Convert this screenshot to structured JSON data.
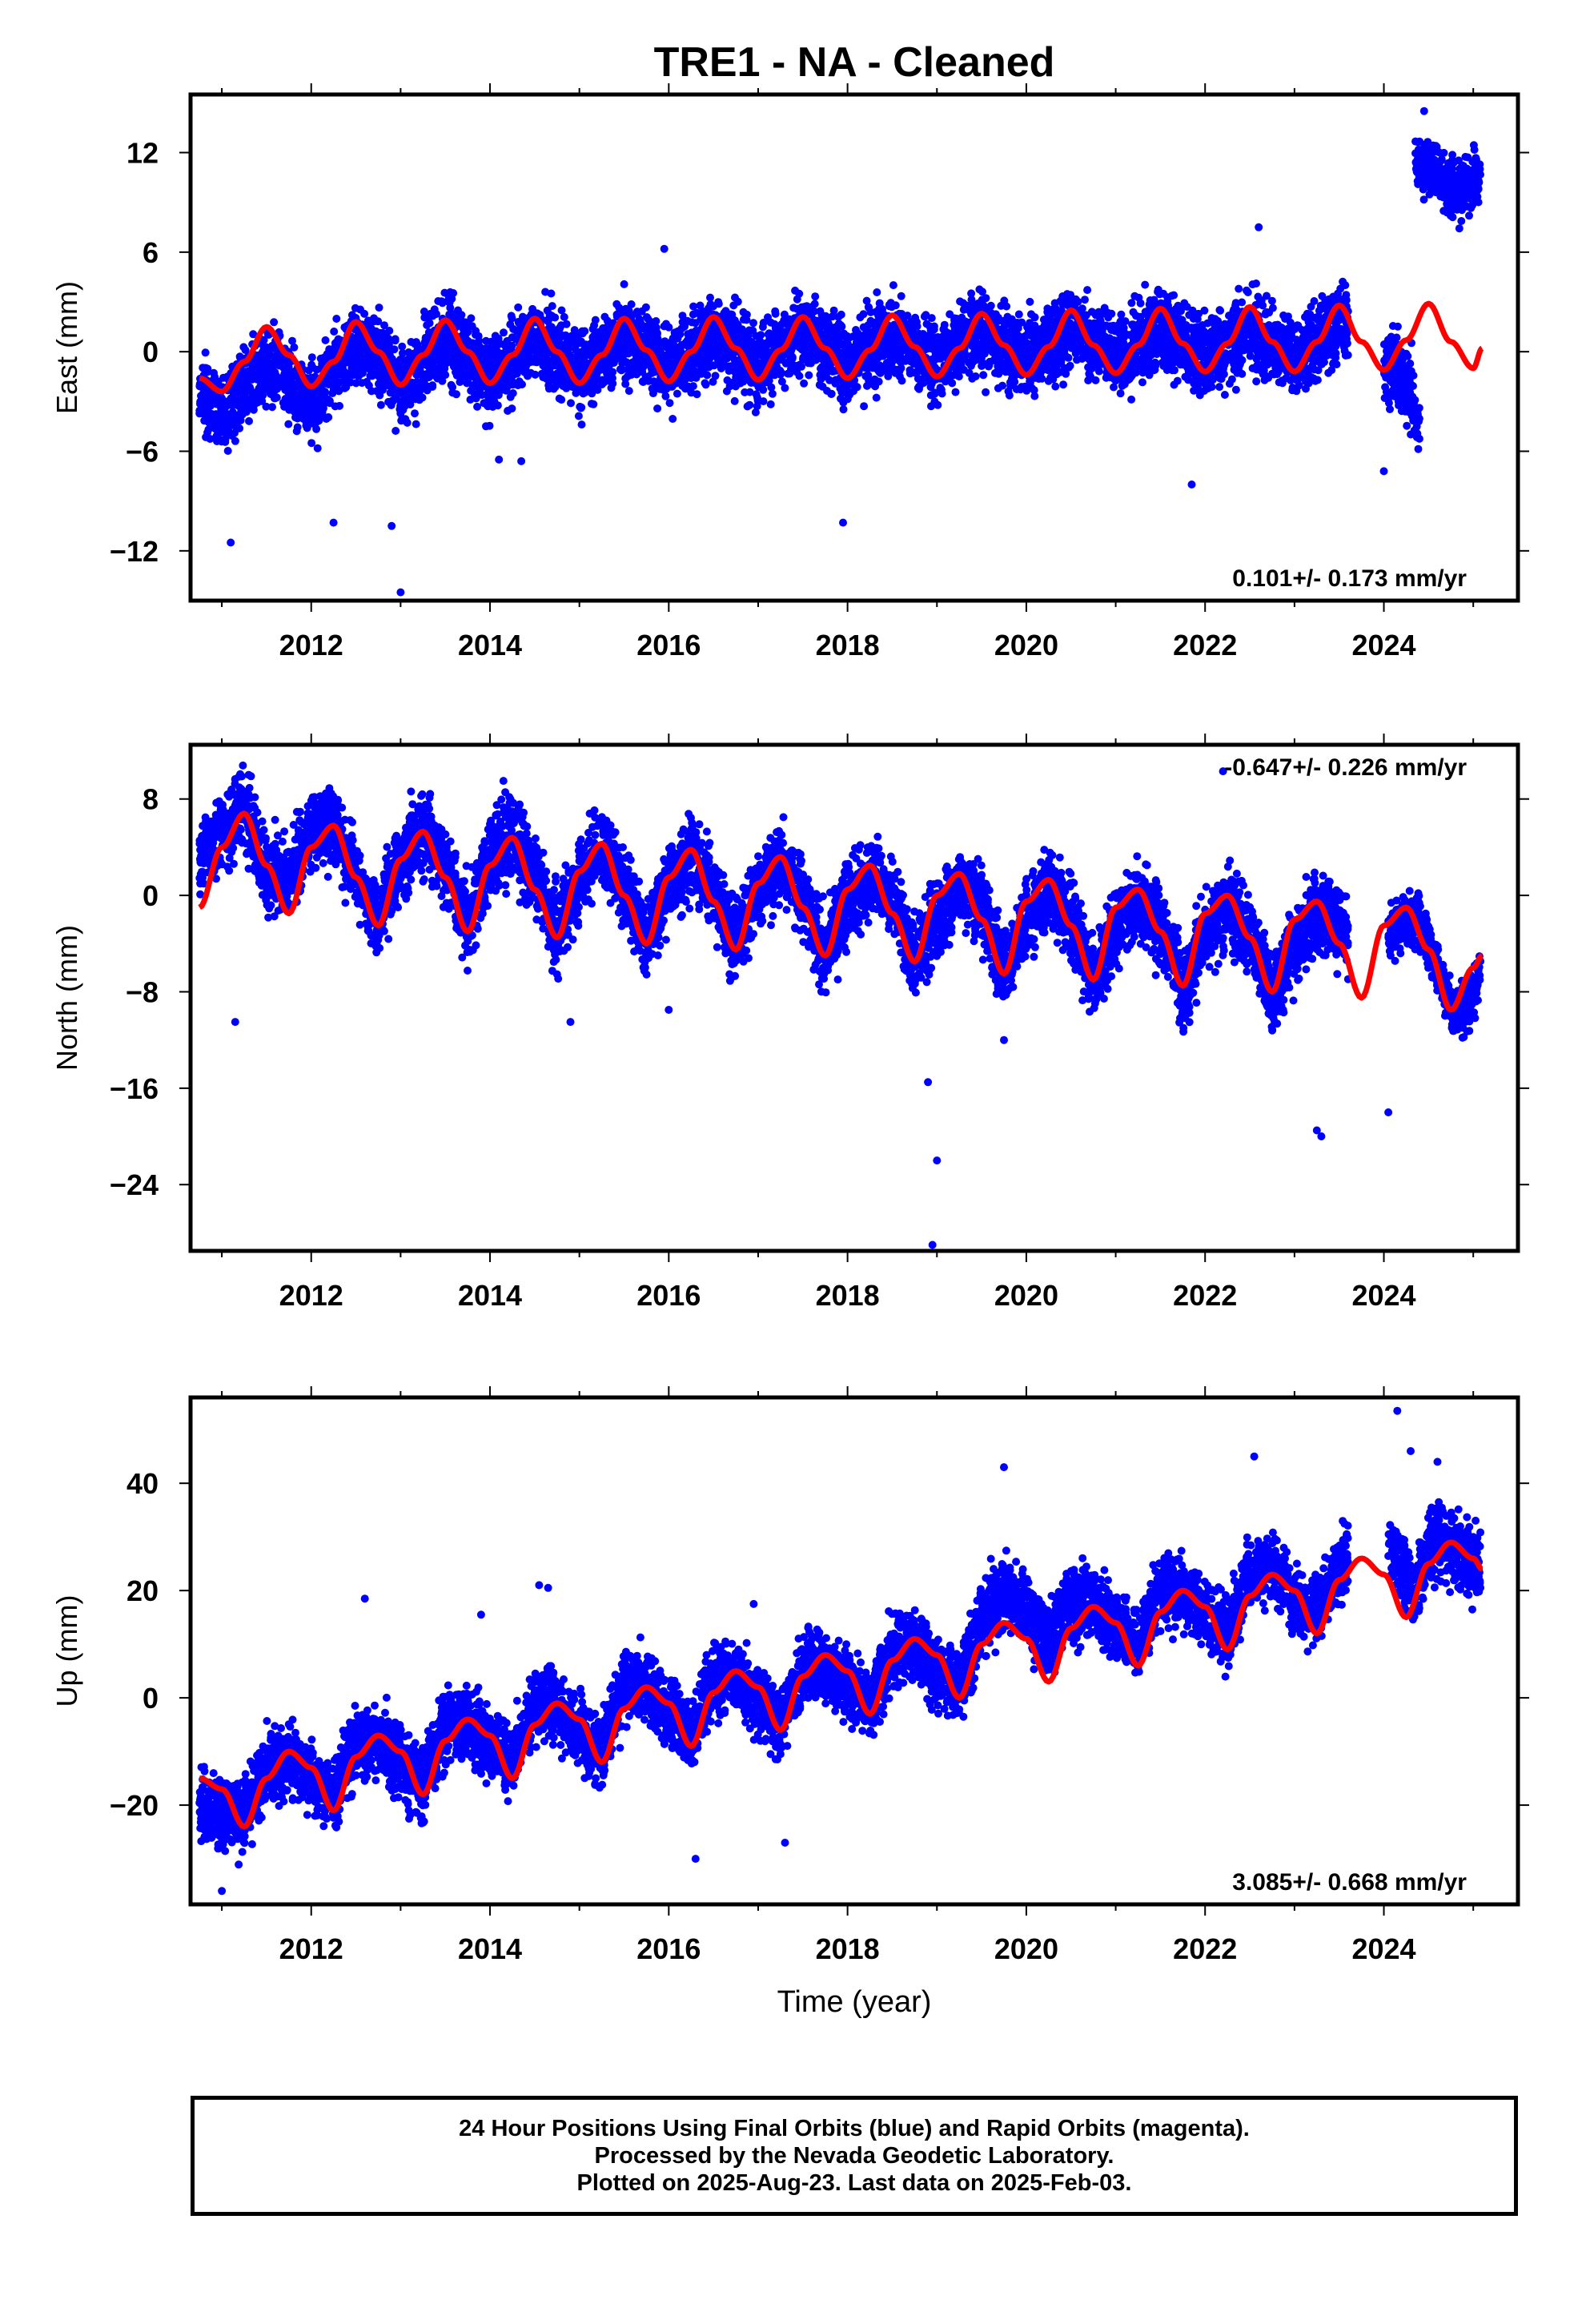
{
  "title": "TRE1  - NA - Cleaned",
  "xlabel": "Time (year)",
  "footer": {
    "line1": "24 Hour Positions Using Final Orbits (blue) and Rapid Orbits (magenta).",
    "line2": "Processed by the Nevada Geodetic Laboratory.",
    "line3": "Plotted on 2025-Aug-23. Last data on 2025-Feb-03."
  },
  "colors": {
    "observations": "#0000ff",
    "model": "#ff0000",
    "frame": "#000000"
  },
  "chart_data": [
    {
      "type": "scatter",
      "component": "east",
      "ylabel": "East (mm)",
      "rate_label": "0.101+/- 0.173 mm/yr",
      "rate_label_position": "bottom-right",
      "xlim": [
        2010.65,
        2025.5
      ],
      "ylim": [
        -15,
        15.5
      ],
      "xticks": [
        "2012",
        "2014",
        "2016",
        "2018",
        "2020",
        "2022",
        "2024"
      ],
      "yticks": [
        12,
        6,
        0,
        -6,
        -12
      ],
      "yticklabels": [
        "12",
        "6",
        "0",
        "−6",
        "−12"
      ],
      "series": [
        {
          "segments": [
            {
              "x": [
                2010.75,
                2011.0,
                2011.25,
                2011.5,
                2011.75,
                2012.0,
                2012.25,
                2012.5,
                2012.75,
                2013.0,
                2013.25,
                2013.5,
                2013.75,
                2014.0,
                2014.25,
                2014.5,
                2014.75,
                2015.0,
                2015.25,
                2015.5,
                2015.75,
                2016.0,
                2016.25,
                2016.5,
                2016.75,
                2017.0,
                2017.25,
                2017.5,
                2017.75,
                2018.0,
                2018.25,
                2018.5,
                2018.75,
                2019.0,
                2019.25,
                2019.5,
                2019.75,
                2020.0,
                2020.25,
                2020.5,
                2020.75,
                2021.0,
                2021.25,
                2021.5,
                2021.75,
                2022.0,
                2022.25,
                2022.5,
                2022.75,
                2023.0,
                2023.25,
                2023.5,
                2023.6
              ],
              "y": [
                -2.2,
                -3.8,
                -2.2,
                -0.8,
                -1.6,
                -3.2,
                -1.2,
                0.5,
                -0.3,
                -2.2,
                -0.6,
                0.8,
                -0.2,
                -1.5,
                -0.4,
                0.9,
                0.0,
                -1.4,
                -0.2,
                1.0,
                0.1,
                -1.0,
                0.0,
                1.0,
                0.2,
                -1.0,
                0.2,
                1.0,
                0.2,
                -0.8,
                0.2,
                1.0,
                0.3,
                -0.6,
                0.4,
                1.3,
                0.4,
                -0.4,
                0.5,
                1.5,
                0.5,
                -0.3,
                0.5,
                1.4,
                0.5,
                -0.3,
                0.5,
                1.4,
                0.5,
                -0.3,
                0.6,
                1.6,
                1.7
              ],
              "spread": 1.6
            },
            {
              "x": [
                2024.0,
                2024.1,
                2024.2,
                2024.3,
                2024.4
              ],
              "y": [
                -1.0,
                -0.5,
                -1.5,
                -2.5,
                -4.0
              ],
              "spread": 1.5
            },
            {
              "x": [
                2024.35,
                2024.5,
                2024.65,
                2024.8,
                2025.0,
                2025.08
              ],
              "y": [
                11.5,
                11.0,
                10.5,
                9.5,
                10.0,
                10.5
              ],
              "spread": 1.2
            }
          ],
          "name": ""
        }
      ],
      "outliers": {
        "x": [
          2011.1,
          2012.25,
          2012.9,
          2013.0,
          2014.1,
          2014.35,
          2015.95,
          2017.95,
          2021.85,
          2022.6,
          2024.0,
          2024.45
        ],
        "y": [
          -11.5,
          -10.3,
          -10.5,
          -14.5,
          -6.5,
          -6.6,
          6.2,
          -10.3,
          -8.0,
          7.5,
          -7.2,
          14.5
        ]
      },
      "model": {
        "x": [
          2010.75,
          2011.0,
          2011.25,
          2011.5,
          2011.75,
          2012.0,
          2012.25,
          2012.5,
          2012.75,
          2013.0,
          2013.25,
          2013.5,
          2013.75,
          2014.0,
          2014.25,
          2014.5,
          2014.75,
          2015.0,
          2015.25,
          2015.5,
          2015.75,
          2016.0,
          2016.25,
          2016.5,
          2016.75,
          2017.0,
          2017.25,
          2017.5,
          2017.75,
          2018.0,
          2018.25,
          2018.5,
          2018.75,
          2019.0,
          2019.25,
          2019.5,
          2019.75,
          2020.0,
          2020.25,
          2020.5,
          2020.75,
          2021.0,
          2021.25,
          2021.5,
          2021.75,
          2022.0,
          2022.25,
          2022.5,
          2022.75,
          2023.0,
          2023.25,
          2023.5,
          2023.75,
          2024.0,
          2024.25,
          2024.5,
          2024.75,
          2025.0,
          2025.1
        ],
        "y": [
          -1.6,
          -2.4,
          -0.6,
          1.5,
          -0.2,
          -2.1,
          -0.6,
          1.8,
          0.0,
          -2.0,
          -0.2,
          1.9,
          0.0,
          -1.9,
          -0.2,
          2.0,
          0.0,
          -1.9,
          -0.2,
          2.0,
          0.1,
          -1.8,
          0.0,
          2.1,
          0.2,
          -1.7,
          0.1,
          2.1,
          0.2,
          -1.6,
          0.1,
          2.2,
          0.3,
          -1.5,
          0.2,
          2.3,
          0.4,
          -1.4,
          0.3,
          2.5,
          0.4,
          -1.3,
          0.4,
          2.6,
          0.5,
          -1.2,
          0.5,
          2.7,
          0.6,
          -1.2,
          0.6,
          2.8,
          0.6,
          -1.1,
          0.7,
          2.9,
          0.6,
          -1.0,
          0.2
        ]
      }
    },
    {
      "type": "scatter",
      "component": "north",
      "ylabel": "North (mm)",
      "rate_label": "-0.647+/- 0.226 mm/yr",
      "rate_label_position": "top-right",
      "xlim": [
        2010.65,
        2025.5
      ],
      "ylim": [
        -29.5,
        12.5
      ],
      "xticks": [
        "2012",
        "2014",
        "2016",
        "2018",
        "2020",
        "2022",
        "2024"
      ],
      "yticks": [
        8,
        0,
        -8,
        -16,
        -24
      ],
      "yticklabels": [
        "8",
        "0",
        "−8",
        "−16",
        "−24"
      ],
      "series": [
        {
          "segments": [
            {
              "x": [
                2010.75,
                2011.0,
                2011.25,
                2011.5,
                2011.75,
                2012.0,
                2012.25,
                2012.5,
                2012.75,
                2013.0,
                2013.25,
                2013.5,
                2013.75,
                2014.0,
                2014.25,
                2014.5,
                2014.75,
                2015.0,
                2015.25,
                2015.5,
                2015.75,
                2016.0,
                2016.25,
                2016.5,
                2016.75,
                2017.0,
                2017.25,
                2017.5,
                2017.75,
                2018.0,
                2018.25,
                2018.5,
                2018.75,
                2019.0,
                2019.25,
                2019.5,
                2019.75,
                2020.0,
                2020.25,
                2020.5,
                2020.75,
                2021.0,
                2021.25,
                2021.5,
                2021.75,
                2022.0,
                2022.25,
                2022.5,
                2022.75,
                2023.0,
                2023.25,
                2023.5,
                2023.6
              ],
              "y": [
                3.0,
                5.5,
                7.0,
                2.0,
                1.5,
                5.5,
                6.0,
                1.5,
                -2.0,
                3.0,
                5.5,
                2.5,
                -2.5,
                3.0,
                5.0,
                2.0,
                -3.0,
                1.5,
                4.5,
                1.0,
                -4.0,
                1.0,
                3.5,
                0.5,
                -4.0,
                0.5,
                3.0,
                0.0,
                -5.0,
                -0.5,
                1.5,
                0.0,
                -5.5,
                -2.0,
                0.5,
                -0.5,
                -6.5,
                -2.0,
                0.5,
                -1.5,
                -7.0,
                -2.5,
                -0.5,
                -2.5,
                -8.0,
                -3.0,
                -1.0,
                -3.0,
                -8.5,
                -4.0,
                -1.5,
                -2.0,
                -3.0
              ],
              "spread": 2.2
            },
            {
              "x": [
                2024.05,
                2024.2,
                2024.35,
                2024.5,
                2024.65,
                2024.8,
                2025.0,
                2025.08
              ],
              "y": [
                -3.5,
                -2.0,
                -1.5,
                -4.0,
                -7.5,
                -10.0,
                -8.0,
                -6.0
              ],
              "spread": 1.5
            }
          ],
          "name": ""
        }
      ],
      "outliers": {
        "x": [
          2011.15,
          2011.3,
          2014.15,
          2014.9,
          2016.0,
          2018.9,
          2018.95,
          2019.0,
          2019.75,
          2023.25,
          2023.3,
          2024.05,
          2022.2
        ],
        "y": [
          -10.5,
          10.0,
          9.5,
          -10.5,
          -9.5,
          -15.5,
          -29.0,
          -22.0,
          -12.0,
          -19.5,
          -20.0,
          -18.0,
          10.3
        ]
      },
      "model": {
        "x": [
          2010.75,
          2011.0,
          2011.25,
          2011.5,
          2011.75,
          2012.0,
          2012.25,
          2012.5,
          2012.75,
          2013.0,
          2013.25,
          2013.5,
          2013.75,
          2014.0,
          2014.25,
          2014.5,
          2014.75,
          2015.0,
          2015.25,
          2015.5,
          2015.75,
          2016.0,
          2016.25,
          2016.5,
          2016.75,
          2017.0,
          2017.25,
          2017.5,
          2017.75,
          2018.0,
          2018.25,
          2018.5,
          2018.75,
          2019.0,
          2019.25,
          2019.5,
          2019.75,
          2020.0,
          2020.25,
          2020.5,
          2020.75,
          2021.0,
          2021.25,
          2021.5,
          2021.75,
          2022.0,
          2022.25,
          2022.5,
          2022.75,
          2023.0,
          2023.25,
          2023.5,
          2023.75,
          2024.0,
          2024.25,
          2024.5,
          2024.75,
          2025.0,
          2025.1
        ],
        "y": [
          -1.0,
          4.0,
          6.8,
          2.5,
          -1.5,
          4.0,
          5.8,
          1.5,
          -2.5,
          3.0,
          5.3,
          1.5,
          -3.0,
          2.5,
          4.8,
          0.5,
          -3.5,
          2.0,
          4.3,
          0.0,
          -4.0,
          1.5,
          3.8,
          -0.5,
          -4.5,
          1.0,
          3.2,
          -1.0,
          -5.0,
          0.5,
          2.5,
          -1.5,
          -5.5,
          0.0,
          1.8,
          -2.0,
          -6.5,
          -0.5,
          1.3,
          -2.5,
          -7.0,
          -1.0,
          0.5,
          -3.0,
          -7.5,
          -1.5,
          0.0,
          -3.5,
          -8.0,
          -2.0,
          -0.5,
          -4.0,
          -8.5,
          -2.5,
          -1.0,
          -4.5,
          -9.5,
          -6.0,
          -5.0
        ]
      }
    },
    {
      "type": "scatter",
      "component": "up",
      "ylabel": "Up (mm)",
      "rate_label": "3.085+/- 0.668 mm/yr",
      "rate_label_position": "bottom-right",
      "xlim": [
        2010.65,
        2025.5
      ],
      "ylim": [
        -38.5,
        56
      ],
      "xticks": [
        "2012",
        "2014",
        "2016",
        "2018",
        "2020",
        "2022",
        "2024"
      ],
      "xlabel": "Time (year)",
      "yticks": [
        40,
        20,
        0,
        -20
      ],
      "yticklabels": [
        "40",
        "20",
        "0",
        "−20"
      ],
      "series": [
        {
          "segments": [
            {
              "x": [
                2010.75,
                2011.0,
                2011.25,
                2011.5,
                2011.75,
                2012.0,
                2012.25,
                2012.5,
                2012.75,
                2013.0,
                2013.25,
                2013.5,
                2013.75,
                2014.0,
                2014.25,
                2014.5,
                2014.75,
                2015.0,
                2015.25,
                2015.5,
                2015.75,
                2016.0,
                2016.25,
                2016.5,
                2016.75,
                2017.0,
                2017.25,
                2017.5,
                2017.75,
                2018.0,
                2018.25,
                2018.5,
                2018.75,
                2019.0,
                2019.25,
                2019.5,
                2019.75,
                2020.0,
                2020.25,
                2020.5,
                2020.75,
                2021.0,
                2021.25,
                2021.5,
                2021.75,
                2022.0,
                2022.25,
                2022.5,
                2022.75,
                2023.0,
                2023.25,
                2023.5,
                2023.6
              ],
              "y": [
                -20.0,
                -22.0,
                -22.0,
                -13.0,
                -12.0,
                -15.0,
                -18.0,
                -8.0,
                -8.0,
                -12.0,
                -16.0,
                -5.0,
                -5.0,
                -9.0,
                -12.0,
                -1.0,
                -1.0,
                -6.0,
                -10.0,
                2.0,
                2.0,
                -3.0,
                -7.0,
                4.0,
                4.0,
                -1.0,
                -5.0,
                6.0,
                6.0,
                2.0,
                -2.0,
                9.0,
                10.0,
                5.0,
                2.0,
                15.0,
                20.0,
                16.0,
                10.0,
                18.0,
                18.0,
                13.0,
                10.0,
                20.0,
                20.0,
                15.0,
                12.0,
                23.0,
                25.0,
                18.0,
                16.0,
                25.0,
                26.0
              ],
              "spread": 4.5
            },
            {
              "x": [
                2024.05,
                2024.2,
                2024.35,
                2024.5,
                2024.65,
                2024.8,
                2025.0,
                2025.08
              ],
              "y": [
                30.0,
                24.0,
                20.0,
                28.0,
                30.0,
                27.0,
                25.0,
                25.0
              ],
              "spread": 4.5
            }
          ],
          "name": ""
        }
      ],
      "outliers": {
        "x": [
          2011.0,
          2012.6,
          2013.9,
          2014.55,
          2014.65,
          2016.3,
          2016.95,
          2017.3,
          2019.75,
          2022.55,
          2024.15,
          2024.3,
          2024.6
        ],
        "y": [
          -36.0,
          18.5,
          15.5,
          21.0,
          20.5,
          -30.0,
          17.5,
          -27.0,
          43.0,
          45.0,
          53.5,
          46.0,
          44.0
        ]
      },
      "model": {
        "x": [
          2010.75,
          2011.0,
          2011.25,
          2011.5,
          2011.75,
          2012.0,
          2012.25,
          2012.5,
          2012.75,
          2013.0,
          2013.25,
          2013.5,
          2013.75,
          2014.0,
          2014.25,
          2014.5,
          2014.75,
          2015.0,
          2015.25,
          2015.5,
          2015.75,
          2016.0,
          2016.25,
          2016.5,
          2016.75,
          2017.0,
          2017.25,
          2017.5,
          2017.75,
          2018.0,
          2018.25,
          2018.5,
          2018.75,
          2019.0,
          2019.25,
          2019.5,
          2019.75,
          2020.0,
          2020.25,
          2020.5,
          2020.75,
          2021.0,
          2021.25,
          2021.5,
          2021.75,
          2022.0,
          2022.25,
          2022.5,
          2022.75,
          2023.0,
          2023.25,
          2023.5,
          2023.75,
          2024.0,
          2024.25,
          2024.5,
          2024.75,
          2025.0,
          2025.1
        ],
        "y": [
          -15.0,
          -17.0,
          -24.0,
          -15.0,
          -10.0,
          -13.0,
          -21.0,
          -11.0,
          -7.0,
          -10.0,
          -18.0,
          -8.0,
          -4.0,
          -7.0,
          -15.0,
          -5.0,
          -1.0,
          -4.0,
          -12.0,
          -2.0,
          2.0,
          -1.0,
          -9.0,
          1.0,
          5.0,
          2.0,
          -6.0,
          4.0,
          8.0,
          5.0,
          -3.0,
          7.0,
          11.0,
          8.0,
          0.0,
          10.0,
          14.0,
          11.0,
          3.0,
          13.0,
          17.0,
          14.0,
          6.0,
          16.0,
          20.0,
          17.0,
          9.0,
          19.0,
          23.0,
          20.0,
          12.0,
          22.0,
          26.0,
          23.0,
          15.0,
          25.0,
          29.0,
          26.0,
          24.0
        ]
      }
    }
  ]
}
